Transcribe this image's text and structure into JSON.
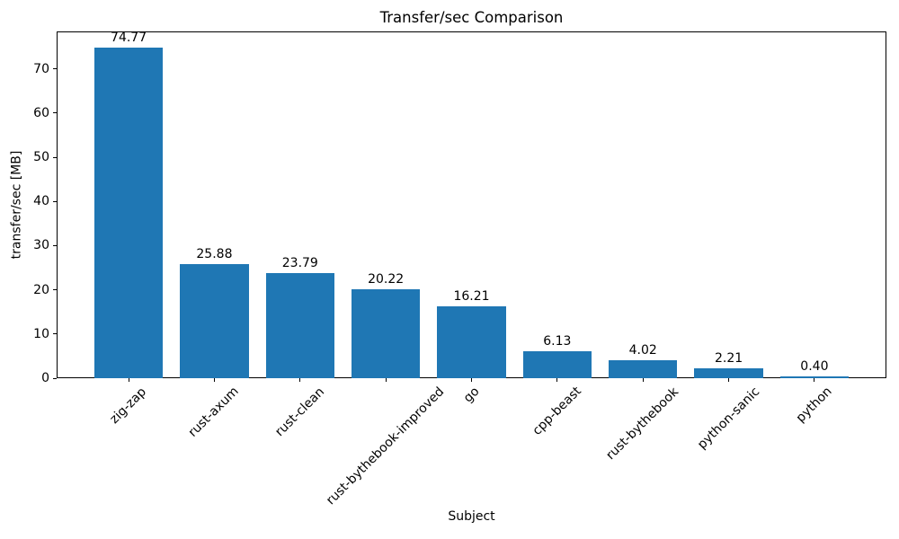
{
  "chart_data": {
    "type": "bar",
    "title": "Transfer/sec Comparison",
    "xlabel": "Subject",
    "ylabel": "transfer/sec [MB]",
    "categories": [
      "zig-zap",
      "rust-axum",
      "rust-clean",
      "rust-bythebook-improved",
      "go",
      "cpp-beast",
      "rust-bythebook",
      "python-sanic",
      "python"
    ],
    "values": [
      74.77,
      25.88,
      23.79,
      20.22,
      16.21,
      6.13,
      4.02,
      2.21,
      0.4
    ],
    "bar_labels": [
      "74.77",
      "25.88",
      "23.79",
      "20.22",
      "16.21",
      "6.13",
      "4.02",
      "2.21",
      "0.40"
    ],
    "yticks": [
      0,
      10,
      20,
      30,
      40,
      50,
      60,
      70
    ],
    "ylim": [
      0,
      78.5
    ],
    "bar_color": "#1f77b4",
    "text_color": "#000000",
    "grid": false,
    "legend": null,
    "x_tick_rotation_deg": 45
  }
}
